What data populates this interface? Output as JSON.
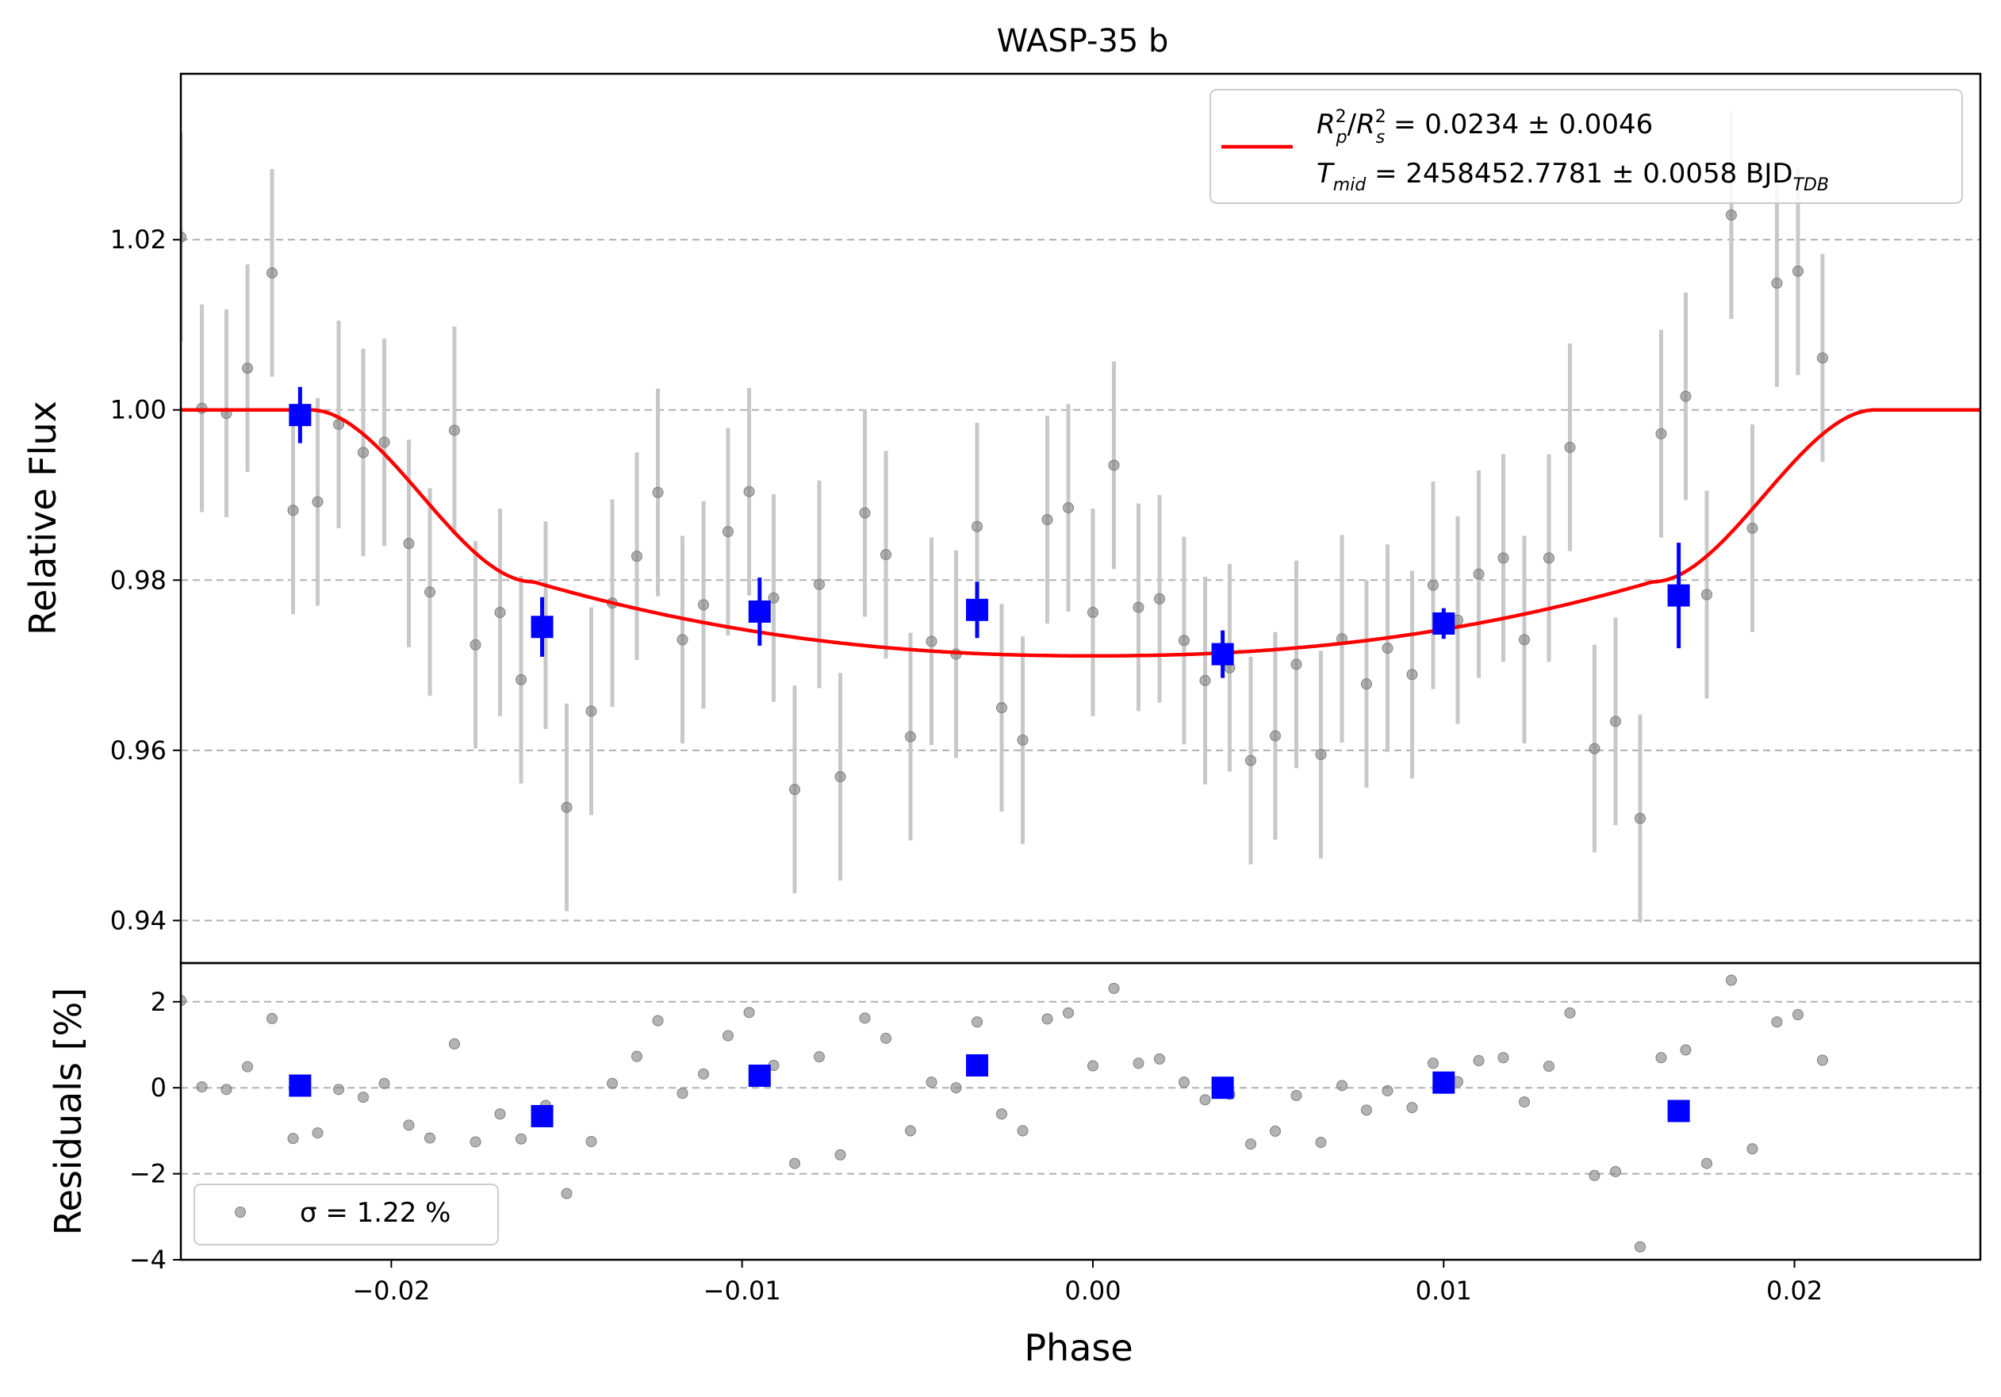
{
  "chart_data": {
    "type": "scatter",
    "title": "WASP-35 b",
    "xlabel": "Phase",
    "ylabel_top": "Relative Flux",
    "ylabel_bottom": "Residuals [%]",
    "xlim": [
      -0.026,
      0.0253
    ],
    "ylim_top": [
      0.935,
      1.0395
    ],
    "ylim_bottom": [
      -4,
      2.9
    ],
    "x_ticks": [
      -0.02,
      -0.01,
      0.0,
      0.01,
      0.02
    ],
    "x_tick_labels": [
      "−0.02",
      "−0.01",
      "0.00",
      "0.01",
      "0.02"
    ],
    "y_ticks_top": [
      0.94,
      0.96,
      0.98,
      1.0,
      1.02
    ],
    "y_tick_labels_top": [
      "0.94",
      "0.96",
      "0.98",
      "1.00",
      "1.02"
    ],
    "y_ticks_bottom": [
      -4,
      -2,
      0,
      2
    ],
    "y_tick_labels_bottom": [
      "−4",
      "−2",
      "0",
      "2"
    ],
    "grid": "horizontal dashed",
    "legend_top": {
      "placement": "top-right",
      "line1": {
        "a": "R",
        "a_sup": "2",
        "a_sub": "p",
        "slash": "/",
        "b": "R",
        "b_sup": "2",
        "b_sub": "s",
        "rest": " = 0.0234 ± 0.0046"
      },
      "line2": {
        "a": "T",
        "a_sub": "mid",
        "rest": " = 2458452.7781 ± 0.0058 BJD",
        "unit_sub": "TDB"
      }
    },
    "legend_bottom": {
      "placement": "bottom-left",
      "label": "σ = 1.22 %"
    },
    "colors": {
      "model": "#ff0000",
      "binned": "#0000ff",
      "raw": "#808080",
      "errorbar": "#c8c8c8",
      "grid": "#b0b0b0"
    },
    "model": {
      "baseline": 1.0,
      "depth_floor": 0.9711,
      "t1": -0.0223,
      "t2": -0.0159,
      "t3": 0.016,
      "t4": 0.0223,
      "flux_at_t2": 0.9798
    },
    "raw_points": [
      {
        "x": -0.026,
        "y": 1.0203,
        "err": 0.0123,
        "res": 2.03
      },
      {
        "x": -0.0254,
        "y": 1.0002,
        "err": 0.0122,
        "res": 0.02
      },
      {
        "x": -0.0247,
        "y": 0.9996,
        "err": 0.0122,
        "res": -0.04
      },
      {
        "x": -0.0241,
        "y": 1.0049,
        "err": 0.0122,
        "res": 0.49
      },
      {
        "x": -0.0234,
        "y": 1.0161,
        "err": 0.0122,
        "res": 1.61
      },
      {
        "x": -0.0228,
        "y": 0.9882,
        "err": 0.0122,
        "res": -1.18
      },
      {
        "x": -0.0221,
        "y": 0.9892,
        "err": 0.0122,
        "res": -1.05
      },
      {
        "x": -0.0215,
        "y": 0.9983,
        "err": 0.0122,
        "res": -0.04
      },
      {
        "x": -0.0208,
        "y": 0.995,
        "err": 0.0122,
        "res": -0.22
      },
      {
        "x": -0.0202,
        "y": 0.9962,
        "err": 0.0122,
        "res": 0.1
      },
      {
        "x": -0.0195,
        "y": 0.9843,
        "err": 0.0122,
        "res": -0.87
      },
      {
        "x": -0.0189,
        "y": 0.9786,
        "err": 0.0122,
        "res": -1.17
      },
      {
        "x": -0.0182,
        "y": 0.9976,
        "err": 0.0122,
        "res": 1.02
      },
      {
        "x": -0.0176,
        "y": 0.9724,
        "err": 0.0122,
        "res": -1.26
      },
      {
        "x": -0.0169,
        "y": 0.9762,
        "err": 0.0122,
        "res": -0.61
      },
      {
        "x": -0.0163,
        "y": 0.9683,
        "err": 0.0122,
        "res": -1.19
      },
      {
        "x": -0.0156,
        "y": 0.9747,
        "err": 0.0122,
        "res": -0.41
      },
      {
        "x": -0.015,
        "y": 0.9533,
        "err": 0.0122,
        "res": -2.46
      },
      {
        "x": -0.0143,
        "y": 0.9646,
        "err": 0.0122,
        "res": -1.25
      },
      {
        "x": -0.0137,
        "y": 0.9773,
        "err": 0.0122,
        "res": 0.1
      },
      {
        "x": -0.013,
        "y": 0.9828,
        "err": 0.0122,
        "res": 0.73
      },
      {
        "x": -0.0124,
        "y": 0.9903,
        "err": 0.0122,
        "res": 1.56
      },
      {
        "x": -0.0117,
        "y": 0.973,
        "err": 0.0122,
        "res": -0.13
      },
      {
        "x": -0.0111,
        "y": 0.9771,
        "err": 0.0122,
        "res": 0.32
      },
      {
        "x": -0.0104,
        "y": 0.9857,
        "err": 0.0122,
        "res": 1.21
      },
      {
        "x": -0.0098,
        "y": 0.9904,
        "err": 0.0122,
        "res": 1.75
      },
      {
        "x": -0.0091,
        "y": 0.9779,
        "err": 0.0122,
        "res": 0.52
      },
      {
        "x": -0.0085,
        "y": 0.9554,
        "err": 0.0122,
        "res": -1.76
      },
      {
        "x": -0.0078,
        "y": 0.9795,
        "err": 0.0122,
        "res": 0.72
      },
      {
        "x": -0.0072,
        "y": 0.9569,
        "err": 0.0122,
        "res": -1.56
      },
      {
        "x": -0.0065,
        "y": 0.9879,
        "err": 0.0122,
        "res": 1.62
      },
      {
        "x": -0.0059,
        "y": 0.983,
        "err": 0.0122,
        "res": 1.15
      },
      {
        "x": -0.0052,
        "y": 0.9616,
        "err": 0.0122,
        "res": -1.0
      },
      {
        "x": -0.0046,
        "y": 0.9728,
        "err": 0.0122,
        "res": 0.13
      },
      {
        "x": -0.0039,
        "y": 0.9713,
        "err": 0.0122,
        "res": 0.0
      },
      {
        "x": -0.0033,
        "y": 0.9863,
        "err": 0.0122,
        "res": 1.53
      },
      {
        "x": -0.0026,
        "y": 0.965,
        "err": 0.0122,
        "res": -0.61
      },
      {
        "x": -0.002,
        "y": 0.9612,
        "err": 0.0122,
        "res": -1.0
      },
      {
        "x": -0.0013,
        "y": 0.9871,
        "err": 0.0122,
        "res": 1.6
      },
      {
        "x": -0.0007,
        "y": 0.9885,
        "err": 0.0122,
        "res": 1.74
      },
      {
        "x": 0.0,
        "y": 0.9762,
        "err": 0.0122,
        "res": 0.51
      },
      {
        "x": 0.0006,
        "y": 0.9935,
        "err": 0.0122,
        "res": 2.31
      },
      {
        "x": 0.0013,
        "y": 0.9768,
        "err": 0.0122,
        "res": 0.57
      },
      {
        "x": 0.0019,
        "y": 0.9778,
        "err": 0.0122,
        "res": 0.67
      },
      {
        "x": 0.0026,
        "y": 0.9729,
        "err": 0.0122,
        "res": 0.13
      },
      {
        "x": 0.0032,
        "y": 0.9682,
        "err": 0.0122,
        "res": -0.28
      },
      {
        "x": 0.0039,
        "y": 0.9697,
        "err": 0.0122,
        "res": -0.15
      },
      {
        "x": 0.0045,
        "y": 0.9588,
        "err": 0.0122,
        "res": -1.31
      },
      {
        "x": 0.0052,
        "y": 0.9617,
        "err": 0.0122,
        "res": -1.01
      },
      {
        "x": 0.0058,
        "y": 0.9701,
        "err": 0.0122,
        "res": -0.18
      },
      {
        "x": 0.0065,
        "y": 0.9595,
        "err": 0.0122,
        "res": -1.27
      },
      {
        "x": 0.0071,
        "y": 0.9731,
        "err": 0.0122,
        "res": 0.05
      },
      {
        "x": 0.0078,
        "y": 0.9678,
        "err": 0.0122,
        "res": -0.52
      },
      {
        "x": 0.0084,
        "y": 0.972,
        "err": 0.0122,
        "res": -0.07
      },
      {
        "x": 0.0091,
        "y": 0.9689,
        "err": 0.0122,
        "res": -0.46
      },
      {
        "x": 0.0097,
        "y": 0.9794,
        "err": 0.0122,
        "res": 0.57
      },
      {
        "x": 0.0104,
        "y": 0.9753,
        "err": 0.0122,
        "res": 0.14
      },
      {
        "x": 0.011,
        "y": 0.9807,
        "err": 0.0122,
        "res": 0.63
      },
      {
        "x": 0.0117,
        "y": 0.9826,
        "err": 0.0122,
        "res": 0.7
      },
      {
        "x": 0.0123,
        "y": 0.973,
        "err": 0.0122,
        "res": -0.33
      },
      {
        "x": 0.013,
        "y": 0.9826,
        "err": 0.0122,
        "res": 0.5
      },
      {
        "x": 0.0136,
        "y": 0.9956,
        "err": 0.0122,
        "res": 1.74
      },
      {
        "x": 0.0143,
        "y": 0.9602,
        "err": 0.0122,
        "res": -2.04
      },
      {
        "x": 0.0149,
        "y": 0.9634,
        "err": 0.0122,
        "res": -1.95
      },
      {
        "x": 0.0156,
        "y": 0.952,
        "err": 0.0122,
        "res": -3.7
      },
      {
        "x": 0.0162,
        "y": 0.9972,
        "err": 0.0122,
        "res": 0.7
      },
      {
        "x": 0.0169,
        "y": 1.0016,
        "err": 0.0122,
        "res": 0.88
      },
      {
        "x": 0.0175,
        "y": 0.9783,
        "err": 0.0122,
        "res": -1.76
      },
      {
        "x": 0.0182,
        "y": 1.0229,
        "err": 0.0122,
        "res": 2.5
      },
      {
        "x": 0.0188,
        "y": 0.9861,
        "err": 0.0122,
        "res": -1.42
      },
      {
        "x": 0.0195,
        "y": 1.0149,
        "err": 0.0122,
        "res": 1.53
      },
      {
        "x": 0.0201,
        "y": 1.0163,
        "err": 0.0122,
        "res": 1.7
      },
      {
        "x": 0.0208,
        "y": 1.0061,
        "err": 0.0122,
        "res": 0.64
      }
    ],
    "binned_points": [
      {
        "x": -0.0226,
        "y": 0.9994,
        "err": 0.0033,
        "res": 0.05
      },
      {
        "x": -0.0157,
        "y": 0.9745,
        "err": 0.0035,
        "res": -0.66
      },
      {
        "x": -0.0095,
        "y": 0.9763,
        "err": 0.004,
        "res": 0.28
      },
      {
        "x": -0.0033,
        "y": 0.9765,
        "err": 0.0033,
        "res": 0.52
      },
      {
        "x": 0.0037,
        "y": 0.9713,
        "err": 0.0028,
        "res": 0.0
      },
      {
        "x": 0.01,
        "y": 0.9749,
        "err": 0.0018,
        "res": 0.12
      },
      {
        "x": 0.0167,
        "y": 0.9782,
        "err": 0.0062,
        "res": -0.54
      }
    ]
  }
}
